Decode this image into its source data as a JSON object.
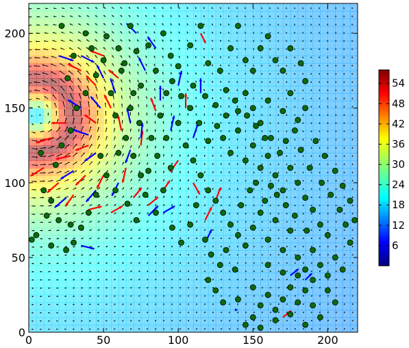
{
  "chart_data": {
    "type": "scatter",
    "title": "",
    "xlabel": "",
    "ylabel": "",
    "xlim": [
      0,
      220
    ],
    "ylim": [
      0,
      220
    ],
    "x_ticks": [
      0,
      50,
      100,
      150,
      200
    ],
    "y_ticks": [
      0,
      50,
      100,
      150,
      200
    ],
    "x_tick_labels": [
      "0",
      "50",
      "100",
      "150",
      "200"
    ],
    "y_tick_labels": [
      "0",
      "50",
      "100",
      "150",
      "200"
    ],
    "grid": false,
    "background_field": {
      "type": "heatmap",
      "colormap": "jet",
      "colorbar_range": [
        0,
        58
      ],
      "colorbar_ticks": [
        6,
        12,
        18,
        24,
        30,
        36,
        42,
        48,
        54
      ],
      "colorbar_tick_labels": [
        "6",
        "12",
        "18",
        "24",
        "30",
        "36",
        "42",
        "48",
        "54"
      ],
      "vortex_center": [
        5,
        145
      ],
      "peak_value": 56,
      "peak_radius": 25
    },
    "vector_field": {
      "type": "quiver",
      "color": "#000000",
      "rotation": "counter-clockwise",
      "center": [
        5,
        145
      ]
    },
    "scatter_points": {
      "color": "#0b6b0b",
      "edge_color": "#000000",
      "points": [
        [
          22,
          205
        ],
        [
          38,
          200
        ],
        [
          52,
          198
        ],
        [
          68,
          205
        ],
        [
          72,
          188
        ],
        [
          80,
          192
        ],
        [
          90,
          200
        ],
        [
          95,
          185
        ],
        [
          100,
          178
        ],
        [
          108,
          192
        ],
        [
          115,
          205
        ],
        [
          120,
          180
        ],
        [
          128,
          175
        ],
        [
          135,
          190
        ],
        [
          140,
          205
        ],
        [
          145,
          182
        ],
        [
          150,
          175
        ],
        [
          155,
          190
        ],
        [
          160,
          198
        ],
        [
          165,
          182
        ],
        [
          170,
          175
        ],
        [
          175,
          190
        ],
        [
          182,
          180
        ],
        [
          185,
          168
        ],
        [
          110,
          165
        ],
        [
          118,
          158
        ],
        [
          125,
          152
        ],
        [
          132,
          162
        ],
        [
          140,
          148
        ],
        [
          145,
          160
        ],
        [
          150,
          150
        ],
        [
          155,
          140
        ],
        [
          160,
          155
        ],
        [
          162,
          130
        ],
        [
          170,
          148
        ],
        [
          175,
          160
        ],
        [
          180,
          142
        ],
        [
          185,
          150
        ],
        [
          130,
          130
        ],
        [
          135,
          120
        ],
        [
          140,
          135
        ],
        [
          145,
          115
        ],
        [
          150,
          125
        ],
        [
          155,
          110
        ],
        [
          160,
          118
        ],
        [
          165,
          105
        ],
        [
          170,
          95
        ],
        [
          175,
          110
        ],
        [
          180,
          100
        ],
        [
          185,
          90
        ],
        [
          100,
          140
        ],
        [
          105,
          125
        ],
        [
          110,
          115
        ],
        [
          115,
          105
        ],
        [
          120,
          95
        ],
        [
          125,
          88
        ],
        [
          130,
          80
        ],
        [
          135,
          72
        ],
        [
          140,
          65
        ],
        [
          145,
          58
        ],
        [
          150,
          70
        ],
        [
          155,
          80
        ],
        [
          160,
          62
        ],
        [
          165,
          75
        ],
        [
          170,
          55
        ],
        [
          175,
          68
        ],
        [
          180,
          50
        ],
        [
          185,
          42
        ],
        [
          190,
          55
        ],
        [
          195,
          45
        ],
        [
          200,
          38
        ],
        [
          205,
          50
        ],
        [
          210,
          42
        ],
        [
          215,
          60
        ],
        [
          212,
          72
        ],
        [
          200,
          65
        ],
        [
          195,
          72
        ],
        [
          190,
          35
        ],
        [
          185,
          28
        ],
        [
          180,
          20
        ],
        [
          175,
          30
        ],
        [
          170,
          22
        ],
        [
          165,
          15
        ],
        [
          160,
          25
        ],
        [
          155,
          18
        ],
        [
          150,
          10
        ],
        [
          145,
          5
        ],
        [
          155,
          3
        ],
        [
          165,
          8
        ],
        [
          175,
          12
        ],
        [
          185,
          5
        ],
        [
          195,
          10
        ],
        [
          205,
          20
        ],
        [
          200,
          28
        ],
        [
          190,
          18
        ],
        [
          180,
          38
        ],
        [
          170,
          40
        ],
        [
          160,
          45
        ],
        [
          150,
          30
        ],
        [
          140,
          22
        ],
        [
          130,
          20
        ],
        [
          125,
          28
        ],
        [
          120,
          35
        ],
        [
          60,
          190
        ],
        [
          62,
          175
        ],
        [
          55,
          160
        ],
        [
          58,
          145
        ],
        [
          65,
          130
        ],
        [
          70,
          118
        ],
        [
          75,
          105
        ],
        [
          78,
          92
        ],
        [
          85,
          80
        ],
        [
          90,
          95
        ],
        [
          95,
          110
        ],
        [
          82,
          130
        ],
        [
          88,
          145
        ],
        [
          92,
          160
        ],
        [
          85,
          175
        ],
        [
          75,
          165
        ],
        [
          68,
          150
        ],
        [
          60,
          120
        ],
        [
          52,
          105
        ],
        [
          45,
          92
        ],
        [
          40,
          80
        ],
        [
          35,
          70
        ],
        [
          30,
          60
        ],
        [
          25,
          55
        ],
        [
          20,
          75
        ],
        [
          15,
          88
        ],
        [
          10,
          95
        ],
        [
          18,
          112
        ],
        [
          22,
          125
        ],
        [
          28,
          135
        ],
        [
          32,
          150
        ],
        [
          38,
          160
        ],
        [
          45,
          172
        ],
        [
          50,
          182
        ],
        [
          42,
          190
        ],
        [
          30,
          185
        ],
        [
          26,
          170
        ],
        [
          8,
          120
        ],
        [
          5,
          65
        ],
        [
          2,
          62
        ],
        [
          12,
          78
        ],
        [
          15,
          58
        ],
        [
          28,
          72
        ],
        [
          48,
          118
        ],
        [
          58,
          95
        ],
        [
          66,
          86
        ],
        [
          72,
          75
        ],
        [
          96,
          70
        ],
        [
          102,
          60
        ],
        [
          108,
          72
        ],
        [
          112,
          85
        ],
        [
          118,
          62
        ],
        [
          122,
          52
        ],
        [
          128,
          45
        ],
        [
          132,
          55
        ],
        [
          138,
          42
        ],
        [
          142,
          85
        ],
        [
          148,
          95
        ],
        [
          152,
          100
        ],
        [
          158,
          88
        ],
        [
          162,
          98
        ],
        [
          168,
          120
        ],
        [
          172,
          128
        ],
        [
          178,
          135
        ],
        [
          182,
          122
        ],
        [
          188,
          110
        ],
        [
          192,
          128
        ],
        [
          198,
          118
        ],
        [
          205,
          108
        ],
        [
          210,
          98
        ],
        [
          215,
          88
        ],
        [
          218,
          75
        ],
        [
          208,
          82
        ],
        [
          202,
          92
        ],
        [
          196,
          100
        ],
        [
          190,
          82
        ],
        [
          186,
          68
        ],
        [
          178,
          78
        ],
        [
          172,
          85
        ],
        [
          166,
          92
        ],
        [
          158,
          130
        ],
        [
          152,
          138
        ],
        [
          146,
          145
        ],
        [
          138,
          155
        ],
        [
          132,
          145
        ],
        [
          126,
          138
        ],
        [
          120,
          128
        ],
        [
          114,
          140
        ],
        [
          108,
          150
        ],
        [
          102,
          158
        ],
        [
          96,
          168
        ],
        [
          92,
          130
        ],
        [
          86,
          118
        ],
        [
          80,
          108
        ],
        [
          74,
          140
        ],
        [
          70,
          160
        ],
        [
          64,
          180
        ]
      ]
    },
    "highlighted_vectors": [
      {
        "color": "#ff0000",
        "vectors": [
          [
            35,
            175,
            -8,
            4
          ],
          [
            45,
            165,
            -6,
            6
          ],
          [
            55,
            150,
            -4,
            8
          ],
          [
            62,
            135,
            -2,
            9
          ],
          [
            40,
            125,
            -8,
            -3
          ],
          [
            28,
            118,
            -9,
            -2
          ],
          [
            20,
            100,
            -7,
            -6
          ],
          [
            30,
            92,
            -5,
            -7
          ],
          [
            50,
            105,
            -4,
            -8
          ],
          [
            65,
            110,
            -2,
            -9
          ],
          [
            75,
            125,
            1,
            9
          ],
          [
            85,
            148,
            -3,
            8
          ],
          [
            105,
            150,
            0,
            9
          ],
          [
            90,
            95,
            4,
            6
          ],
          [
            70,
            90,
            5,
            6
          ],
          [
            55,
            80,
            7,
            4
          ],
          [
            40,
            82,
            8,
            2
          ],
          [
            118,
            75,
            4,
            8
          ],
          [
            125,
            88,
            3,
            8
          ],
          [
            115,
            200,
            3,
            -6
          ],
          [
            60,
            170,
            -6,
            5
          ],
          [
            50,
            185,
            -8,
            3
          ],
          [
            25,
            140,
            -9,
            0
          ],
          [
            15,
            130,
            -9,
            -3
          ],
          [
            10,
            110,
            -8,
            -5
          ],
          [
            45,
            140,
            -7,
            5
          ],
          [
            38,
            105,
            -6,
            -6
          ],
          [
            170,
            10,
            5,
            4
          ],
          [
            80,
            85,
            6,
            5
          ],
          [
            100,
            115,
            -5,
            -7
          ],
          [
            110,
            100,
            4,
            -7
          ]
        ]
      },
      {
        "color": "#0000ff",
        "vectors": [
          [
            20,
            185,
            9,
            -3
          ],
          [
            35,
            185,
            8,
            -4
          ],
          [
            50,
            170,
            -4,
            8
          ],
          [
            48,
            150,
            -6,
            7
          ],
          [
            58,
            160,
            -3,
            9
          ],
          [
            68,
            140,
            -2,
            9
          ],
          [
            75,
            130,
            1,
            9
          ],
          [
            88,
            155,
            0,
            9
          ],
          [
            95,
            135,
            2,
            9
          ],
          [
            110,
            130,
            3,
            9
          ],
          [
            78,
            175,
            -4,
            8
          ],
          [
            85,
            190,
            -5,
            7
          ],
          [
            72,
            200,
            -6,
            6
          ],
          [
            100,
            165,
            2,
            9
          ],
          [
            115,
            160,
            0,
            9
          ],
          [
            35,
            150,
            -8,
            5
          ],
          [
            40,
            132,
            -9,
            3
          ],
          [
            30,
            108,
            -8,
            -5
          ],
          [
            25,
            90,
            -7,
            -6
          ],
          [
            45,
            95,
            -6,
            -7
          ],
          [
            60,
            100,
            -4,
            -8
          ],
          [
            80,
            78,
            6,
            6
          ],
          [
            90,
            80,
            7,
            4
          ],
          [
            35,
            58,
            8,
            -2
          ],
          [
            118,
            60,
            4,
            8
          ],
          [
            140,
            15,
            0,
            0
          ],
          [
            175,
            38,
            5,
            4
          ],
          [
            185,
            35,
            4,
            4
          ],
          [
            45,
            120,
            -7,
            -5
          ],
          [
            68,
            122,
            -3,
            -8
          ]
        ]
      }
    ]
  }
}
